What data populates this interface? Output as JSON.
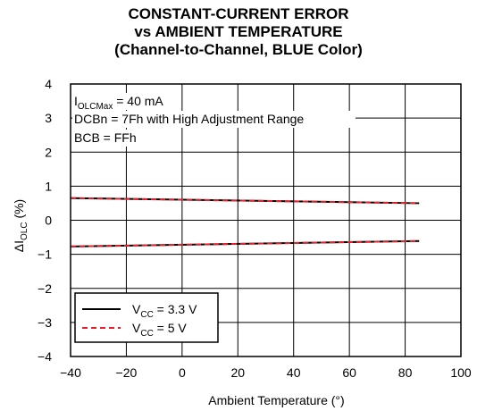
{
  "chart_data": {
    "type": "line",
    "title": [
      "CONSTANT-CURRENT ERROR",
      "vs AMBIENT TEMPERATURE",
      "(Channel-to-Channel, BLUE Color)"
    ],
    "xlabel": "Ambient Temperature (°)",
    "ylabel": {
      "prefix": "ΔI",
      "sub": "OLC",
      "suffix": " (%)"
    },
    "xlim": [
      -40,
      100
    ],
    "ylim": [
      -4,
      4
    ],
    "xticks": [
      -40,
      -20,
      0,
      20,
      40,
      60,
      80,
      100
    ],
    "yticks": [
      4,
      3,
      2,
      1,
      0,
      -1,
      -2,
      -3,
      -4
    ],
    "grid": true,
    "annotations": [
      {
        "prefix": "I",
        "sub": "OLCMax",
        "suffix": " = 40 mA"
      },
      {
        "prefix": "DCBn = 7Fh with High Adjustment Range",
        "sub": "",
        "suffix": ""
      },
      {
        "prefix": "BCB = FFh",
        "sub": "",
        "suffix": ""
      }
    ],
    "legend_position": "bottom-left",
    "series": [
      {
        "name": {
          "prefix": "V",
          "sub": "CC",
          "suffix": " = 3.3 V"
        },
        "color": "#000000",
        "style": "solid",
        "x": [
          -40,
          85
        ],
        "y": [
          0.65,
          0.5
        ]
      },
      {
        "name": {
          "prefix": "V",
          "sub": "CC",
          "suffix": " = 3.3 V"
        },
        "color": "#000000",
        "style": "solid",
        "x": [
          -40,
          85
        ],
        "y": [
          -0.77,
          -0.61
        ],
        "legend": false
      },
      {
        "name": {
          "prefix": "V",
          "sub": "CC",
          "suffix": " = 5 V"
        },
        "color": "#e8202a",
        "style": "dashed",
        "x": [
          -40,
          85
        ],
        "y": [
          0.65,
          0.5
        ]
      },
      {
        "name": {
          "prefix": "V",
          "sub": "CC",
          "suffix": " = 5 V"
        },
        "color": "#e8202a",
        "style": "dashed",
        "x": [
          -40,
          85
        ],
        "y": [
          -0.77,
          -0.61
        ],
        "legend": false
      }
    ]
  }
}
